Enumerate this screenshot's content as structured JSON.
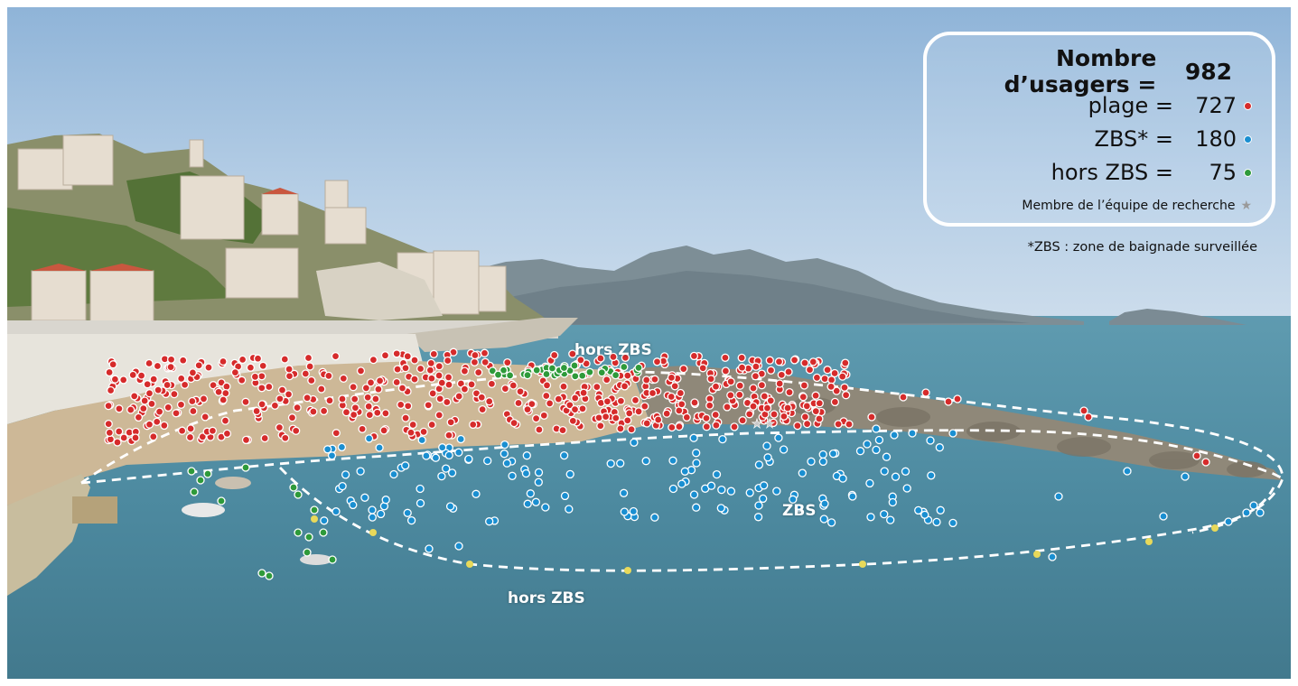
{
  "legend": {
    "total_label": "Nombre d’usagers =",
    "total_value": "982",
    "rows": [
      {
        "label": "plage =",
        "value": "727",
        "color": "#d62b2b"
      },
      {
        "label": "ZBS* =",
        "value": "180",
        "color": "#1a8fd1"
      },
      {
        "label": "hors ZBS =",
        "value": "75",
        "color": "#2e9a3a"
      }
    ],
    "member_label": "Membre de l’équipe de recherche",
    "member_icon": "star-icon"
  },
  "footnote": "*ZBS : zone de baignade surveillée",
  "zones": {
    "beach_out_top": "hors ZBS",
    "zbs": "ZBS",
    "out_bottom": "hors ZBS"
  }
}
